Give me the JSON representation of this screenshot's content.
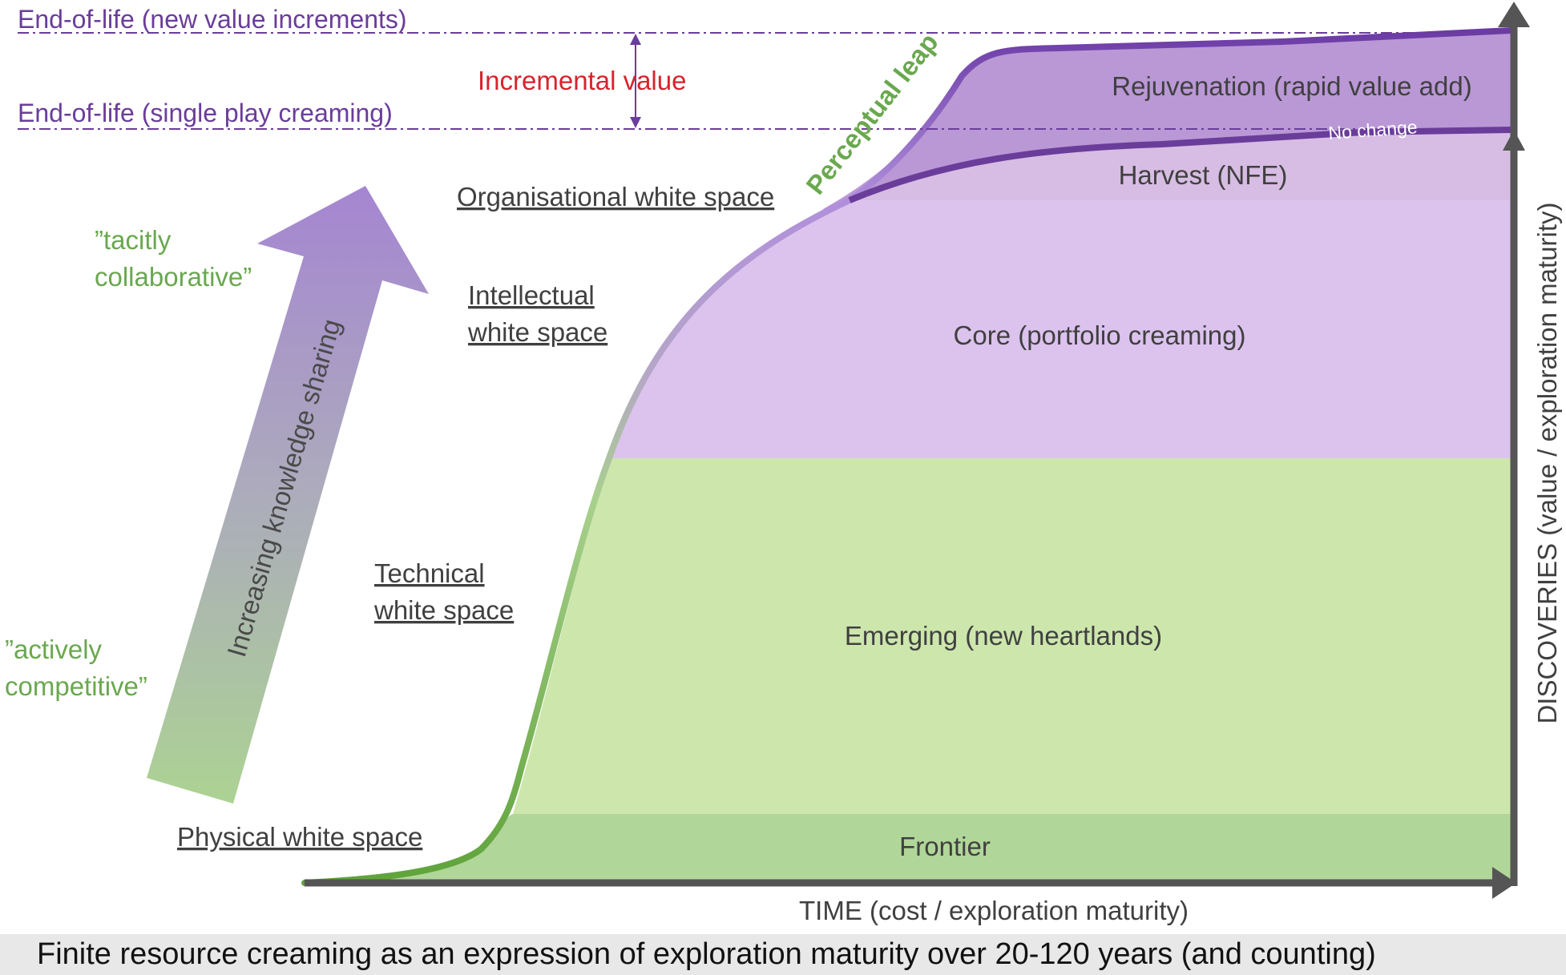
{
  "eol_new_value_label": "End-of-life (new value increments)",
  "eol_single_play_label": "End-of-life (single play creaming)",
  "incremental_value_label": "Incremental value",
  "perceptual_leap_label": "Perceptual leap",
  "no_change_label": "No change",
  "regions": {
    "rejuvenation": "Rejuvenation (rapid value add)",
    "harvest": "Harvest (NFE)",
    "core": "Core (portfolio creaming)",
    "emerging": "Emerging (new heartlands)",
    "frontier": "Frontier"
  },
  "white_spaces": {
    "organisational": "Organisational white space",
    "intellectual_line1": "Intellectual",
    "intellectual_line2": "white space",
    "technical_line1": "Technical",
    "technical_line2": "white space",
    "physical": "Physical white space"
  },
  "knowledge_arrow_label": "Increasing knowledge sharing",
  "tacitly_line1": "”tacitly",
  "tacitly_line2": "collaborative”",
  "actively_line1": "”actively",
  "actively_line2": "competitive”",
  "x_axis_label": "TIME (cost / exploration maturity)",
  "y_axis_label": "DISCOVERIES (value / exploration maturity)",
  "caption": "Finite resource creaming as an expression of exploration maturity over 20-120 years (and counting)",
  "colors": {
    "eol_purple": "#6a3d9a",
    "incremental_red": "#d9232d",
    "perceptual_green": "#6aa84f",
    "rejuvenation_fill": "#b48fd3",
    "harvest_fill": "#d7bde3",
    "core_fill": "#dcc3ee",
    "emerging_fill": "#c9e5a8",
    "frontier_fill": "#a9d18e",
    "axis": "#555555"
  }
}
